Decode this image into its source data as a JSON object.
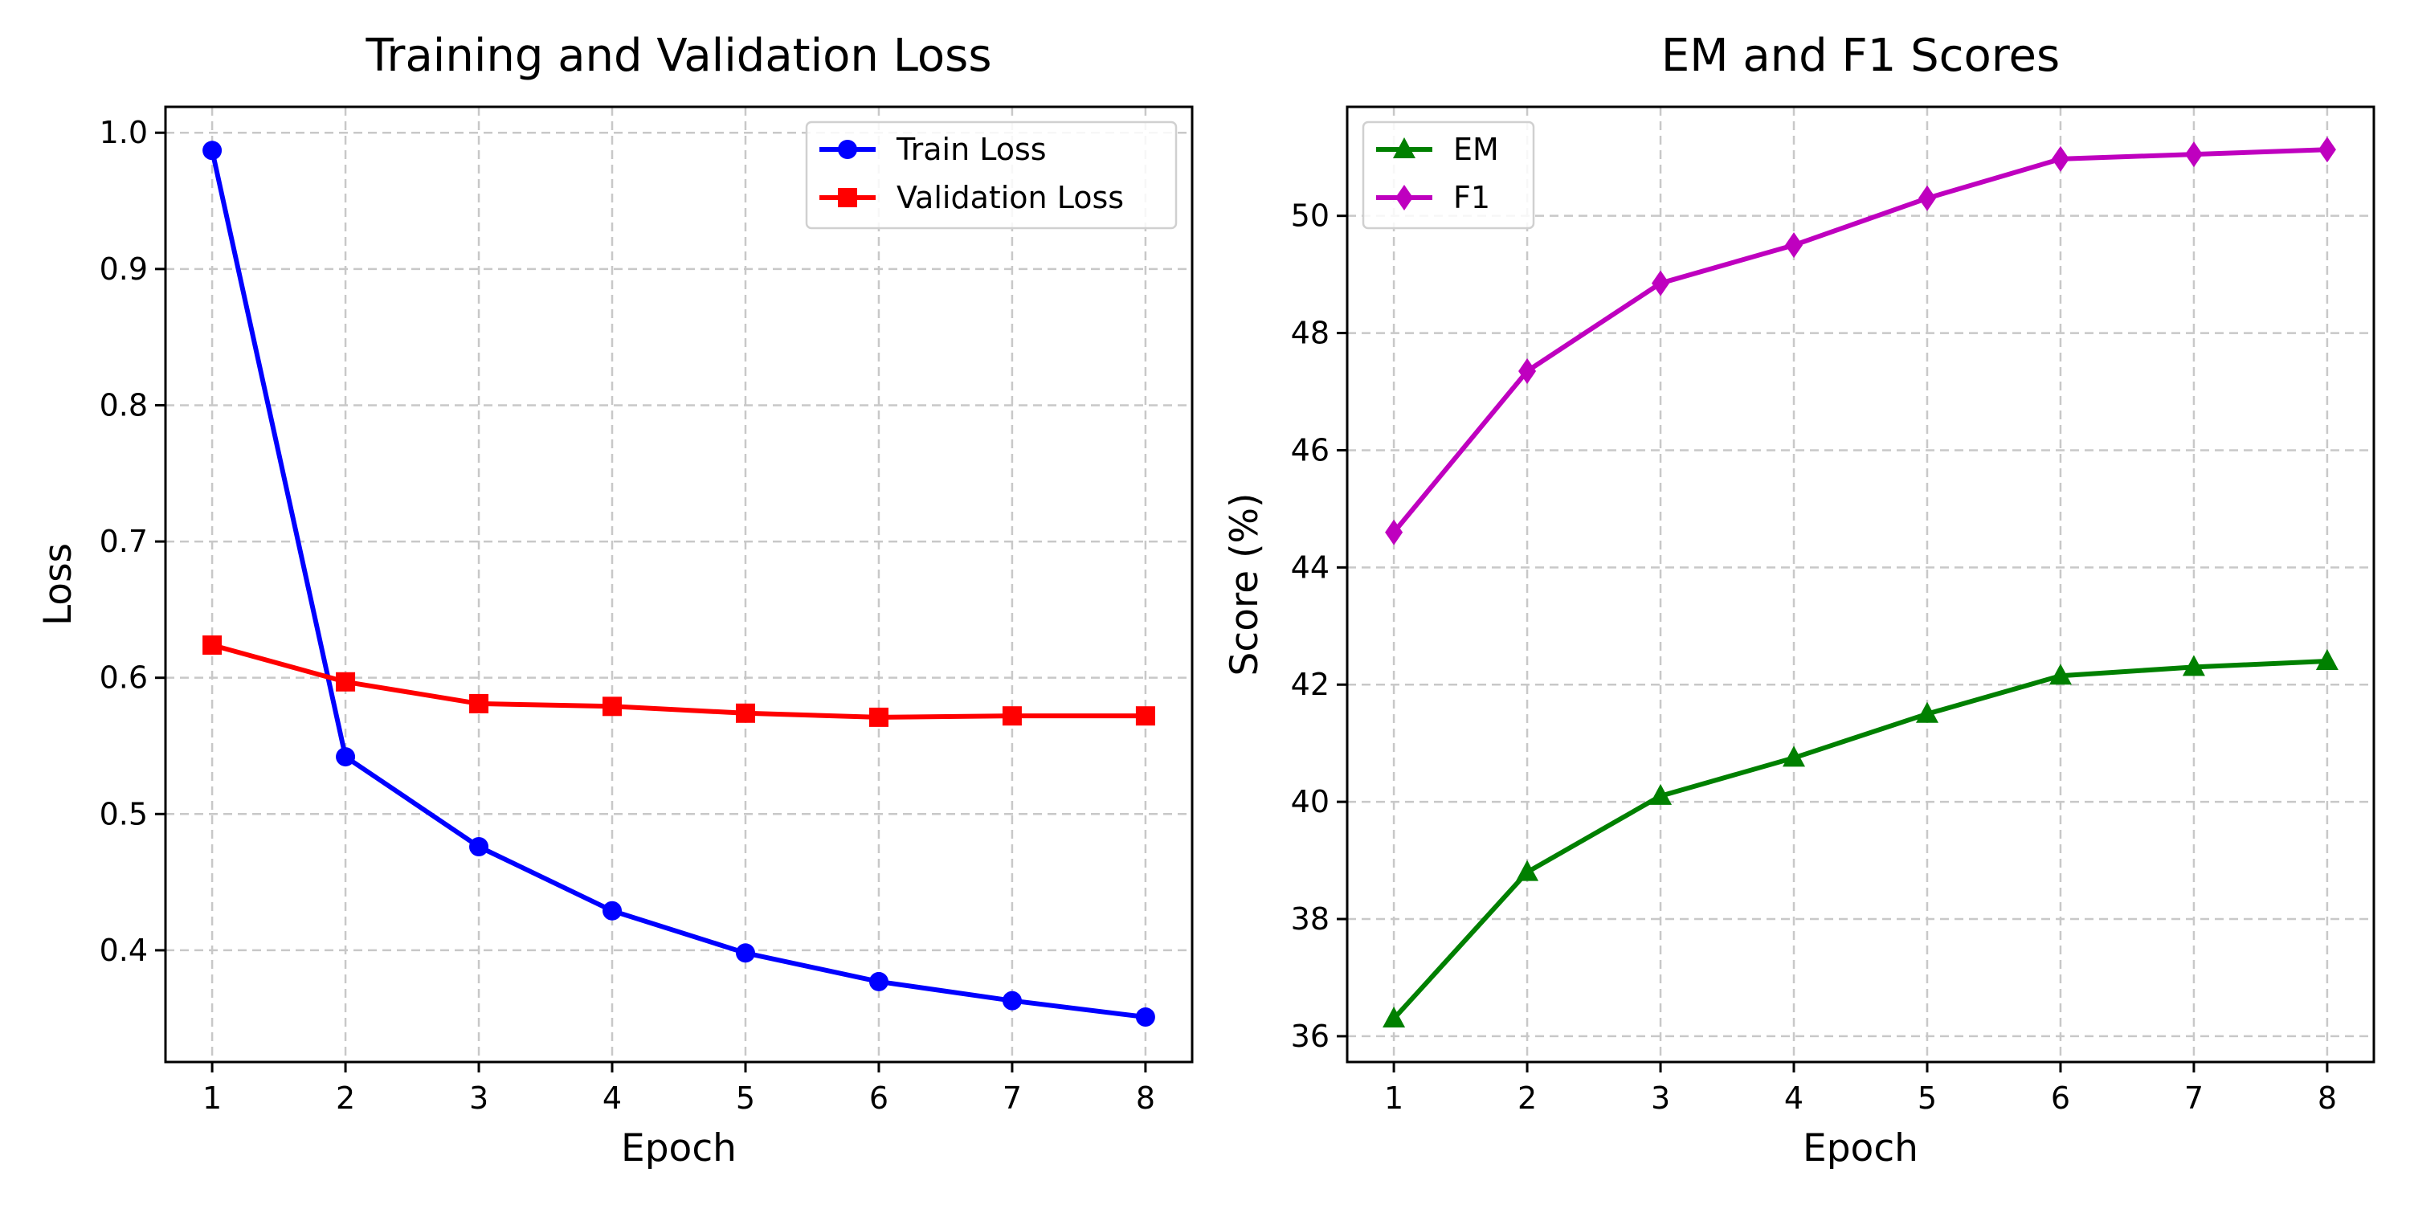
{
  "chart_data": [
    {
      "type": "line",
      "title": "Training and Validation Loss",
      "xlabel": "Epoch",
      "ylabel": "Loss",
      "x": [
        1,
        2,
        3,
        4,
        5,
        6,
        7,
        8
      ],
      "xticks": [
        1,
        2,
        3,
        4,
        5,
        6,
        7,
        8
      ],
      "xlim": [
        0.65,
        8.35
      ],
      "yticks": [
        0.4,
        0.5,
        0.6,
        0.7,
        0.8,
        0.9,
        1.0
      ],
      "ylim": [
        0.318,
        1.019
      ],
      "tick_decimals": 1,
      "grid": true,
      "legend_position": "top-right",
      "series": [
        {
          "name": "Train Loss",
          "values": [
            0.987,
            0.542,
            0.476,
            0.429,
            0.398,
            0.377,
            0.363,
            0.351
          ],
          "color": "#0000ff",
          "marker": "circle"
        },
        {
          "name": "Validation Loss",
          "values": [
            0.624,
            0.597,
            0.581,
            0.579,
            0.574,
            0.571,
            0.572,
            0.572
          ],
          "color": "#ff0000",
          "marker": "square"
        }
      ]
    },
    {
      "type": "line",
      "title": "EM and F1 Scores",
      "xlabel": "Epoch",
      "ylabel": "Score (%)",
      "x": [
        1,
        2,
        3,
        4,
        5,
        6,
        7,
        8
      ],
      "xticks": [
        1,
        2,
        3,
        4,
        5,
        6,
        7,
        8
      ],
      "xlim": [
        0.65,
        8.35
      ],
      "yticks": [
        36,
        38,
        40,
        42,
        44,
        46,
        48,
        50
      ],
      "ylim": [
        35.56,
        51.86
      ],
      "tick_decimals": 0,
      "grid": true,
      "legend_position": "top-left",
      "series": [
        {
          "name": "EM",
          "values": [
            36.3,
            38.8,
            40.1,
            40.75,
            41.5,
            42.15,
            42.3,
            42.4
          ],
          "color": "#008000",
          "marker": "triangle"
        },
        {
          "name": "F1",
          "values": [
            44.6,
            47.35,
            48.85,
            49.5,
            50.3,
            50.97,
            51.05,
            51.13
          ],
          "color": "#bf00bf",
          "marker": "diamond"
        }
      ]
    }
  ]
}
